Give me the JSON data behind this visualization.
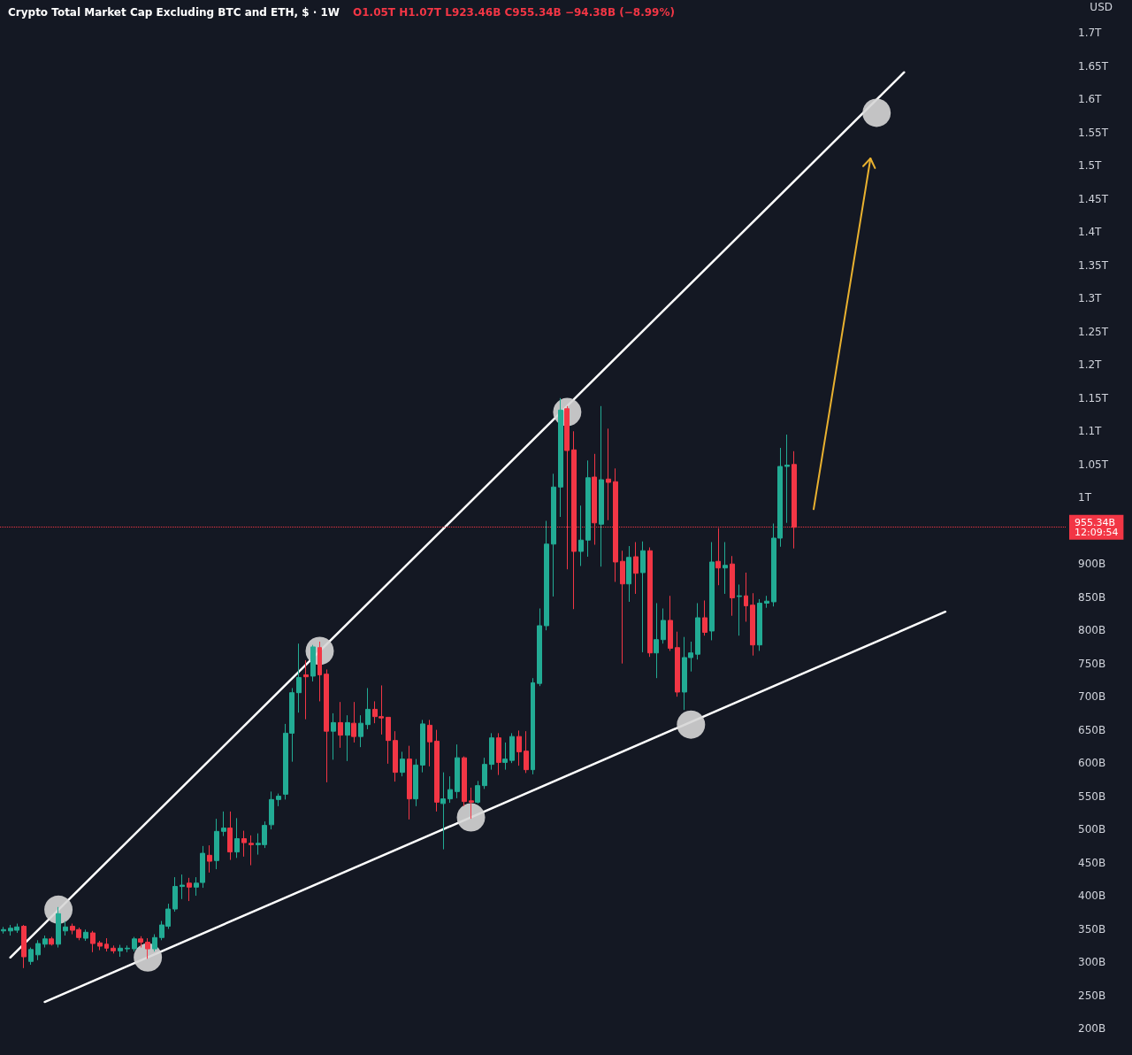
{
  "chart_data": {
    "type": "candlestick",
    "title": "Crypto Total Market Cap Excluding BTC and ETH, $ · 1W",
    "subtitle": "O1.05T H1.07T L923.46B C955.34B −94.38B (−8.99%)",
    "ylabel": "USD",
    "categories": [
      null,
      null,
      null,
      null,
      null,
      null,
      null,
      null,
      null,
      null,
      null,
      null,
      null,
      null,
      null,
      null,
      null,
      null,
      null,
      null,
      null,
      null,
      null,
      null,
      null,
      null,
      null,
      null,
      null,
      null,
      null,
      null,
      null,
      null,
      null,
      null,
      null,
      null,
      null,
      null,
      null,
      null,
      null,
      null,
      null,
      null,
      null,
      null,
      null,
      null,
      null,
      null,
      null,
      null,
      null,
      null,
      null,
      null,
      null,
      null,
      null,
      null,
      null,
      null,
      null,
      null,
      null,
      null,
      null,
      null,
      null,
      null,
      null,
      null,
      null,
      null,
      null,
      null,
      null,
      null,
      null,
      null,
      null,
      null,
      null,
      null,
      null,
      null,
      null,
      null,
      null,
      null,
      null,
      null,
      null,
      null,
      null,
      null,
      null,
      null,
      null,
      null,
      null,
      null,
      null,
      null,
      null,
      null,
      null,
      null,
      null,
      null,
      null,
      null,
      null,
      null,
      null,
      null,
      null,
      null,
      null,
      null,
      null,
      null,
      null,
      null,
      null,
      null,
      null,
      null,
      null,
      null,
      null,
      null,
      null,
      null,
      null,
      null,
      null,
      null,
      null,
      null,
      null,
      null,
      null,
      null,
      null,
      null,
      null,
      null,
      null,
      null,
      null,
      null,
      null
    ],
    "ohlc": [
      [
        347000000000.0,
        353000000000.0,
        343000000000.0,
        349000000000.0
      ],
      [
        347000000000.0,
        356000000000.0,
        340000000000.0,
        351000000000.0
      ],
      [
        348000000000.0,
        358000000000.0,
        344000000000.0,
        353000000000.0
      ],
      [
        354000000000.0,
        356000000000.0,
        291000000000.0,
        308000000000.0
      ],
      [
        301000000000.0,
        322000000000.0,
        296000000000.0,
        319000000000.0
      ],
      [
        311000000000.0,
        333000000000.0,
        303000000000.0,
        328000000000.0
      ],
      [
        327000000000.0,
        340000000000.0,
        322000000000.0,
        335000000000.0
      ],
      [
        335000000000.0,
        338000000000.0,
        325000000000.0,
        327000000000.0
      ],
      [
        327000000000.0,
        383000000000.0,
        322000000000.0,
        373000000000.0
      ],
      [
        347000000000.0,
        362000000000.0,
        340000000000.0,
        353000000000.0
      ],
      [
        354000000000.0,
        358000000000.0,
        342000000000.0,
        348000000000.0
      ],
      [
        349000000000.0,
        352000000000.0,
        333000000000.0,
        337000000000.0
      ],
      [
        336000000000.0,
        349000000000.0,
        332000000000.0,
        345000000000.0
      ],
      [
        344000000000.0,
        347000000000.0,
        315000000000.0,
        328000000000.0
      ],
      [
        329000000000.0,
        332000000000.0,
        318000000000.0,
        324000000000.0
      ],
      [
        327000000000.0,
        336000000000.0,
        316000000000.0,
        321000000000.0
      ],
      [
        321000000000.0,
        325000000000.0,
        313000000000.0,
        317000000000.0
      ],
      [
        317000000000.0,
        326000000000.0,
        308000000000.0,
        321000000000.0
      ],
      [
        320000000000.0,
        325000000000.0,
        315000000000.0,
        321000000000.0
      ],
      [
        320000000000.0,
        338000000000.0,
        316000000000.0,
        335000000000.0
      ],
      [
        335000000000.0,
        339000000000.0,
        322000000000.0,
        330000000000.0
      ],
      [
        330000000000.0,
        336000000000.0,
        305000000000.0,
        320000000000.0
      ],
      [
        320000000000.0,
        342000000000.0,
        316000000000.0,
        337000000000.0
      ],
      [
        337000000000.0,
        362000000000.0,
        333000000000.0,
        356000000000.0
      ],
      [
        354000000000.0,
        388000000000.0,
        350000000000.0,
        380000000000.0
      ],
      [
        380000000000.0,
        428000000000.0,
        376000000000.0,
        414000000000.0
      ],
      [
        414000000000.0,
        432000000000.0,
        395000000000.0,
        416000000000.0
      ],
      [
        419000000000.0,
        427000000000.0,
        392000000000.0,
        413000000000.0
      ],
      [
        413000000000.0,
        428000000000.0,
        400000000000.0,
        419000000000.0
      ],
      [
        420000000000.0,
        475000000000.0,
        412000000000.0,
        464000000000.0
      ],
      [
        461000000000.0,
        476000000000.0,
        435000000000.0,
        452000000000.0
      ],
      [
        453000000000.0,
        516000000000.0,
        440000000000.0,
        497000000000.0
      ],
      [
        497000000000.0,
        527000000000.0,
        490000000000.0,
        502000000000.0
      ],
      [
        502000000000.0,
        527000000000.0,
        454000000000.0,
        466000000000.0
      ],
      [
        466000000000.0,
        517000000000.0,
        457000000000.0,
        486000000000.0
      ],
      [
        486000000000.0,
        498000000000.0,
        459000000000.0,
        480000000000.0
      ],
      [
        479000000000.0,
        491000000000.0,
        446000000000.0,
        477000000000.0
      ],
      [
        477000000000.0,
        494000000000.0,
        462000000000.0,
        479000000000.0
      ],
      [
        477000000000.0,
        512000000000.0,
        472000000000.0,
        506000000000.0
      ],
      [
        507000000000.0,
        557000000000.0,
        500000000000.0,
        545000000000.0
      ],
      [
        545000000000.0,
        554000000000.0,
        535000000000.0,
        550000000000.0
      ],
      [
        553000000000.0,
        659000000000.0,
        545000000000.0,
        645000000000.0
      ],
      [
        645000000000.0,
        713000000000.0,
        602000000000.0,
        706000000000.0
      ],
      [
        706000000000.0,
        780000000000.0,
        676000000000.0,
        729000000000.0
      ],
      [
        733000000000.0,
        755000000000.0,
        666000000000.0,
        730000000000.0
      ],
      [
        731000000000.0,
        778000000000.0,
        723000000000.0,
        775000000000.0
      ],
      [
        774000000000.0,
        783000000000.0,
        693000000000.0,
        733000000000.0
      ],
      [
        734000000000.0,
        741000000000.0,
        571000000000.0,
        648000000000.0
      ],
      [
        648000000000.0,
        675000000000.0,
        605000000000.0,
        661000000000.0
      ],
      [
        661000000000.0,
        692000000000.0,
        623000000000.0,
        642000000000.0
      ],
      [
        642000000000.0,
        672000000000.0,
        603000000000.0,
        661000000000.0
      ],
      [
        660000000000.0,
        692000000000.0,
        631000000000.0,
        640000000000.0
      ],
      [
        640000000000.0,
        672000000000.0,
        624000000000.0,
        660000000000.0
      ],
      [
        658000000000.0,
        713000000000.0,
        651000000000.0,
        681000000000.0
      ],
      [
        681000000000.0,
        693000000000.0,
        660000000000.0,
        670000000000.0
      ],
      [
        670000000000.0,
        717000000000.0,
        643000000000.0,
        668000000000.0
      ],
      [
        669000000000.0,
        669000000000.0,
        599000000000.0,
        634000000000.0
      ],
      [
        634000000000.0,
        648000000000.0,
        572000000000.0,
        586000000000.0
      ],
      [
        586000000000.0,
        617000000000.0,
        580000000000.0,
        606000000000.0
      ],
      [
        606000000000.0,
        626000000000.0,
        515000000000.0,
        546000000000.0
      ],
      [
        546000000000.0,
        606000000000.0,
        535000000000.0,
        597000000000.0
      ],
      [
        597000000000.0,
        665000000000.0,
        586000000000.0,
        659000000000.0
      ],
      [
        657000000000.0,
        665000000000.0,
        595000000000.0,
        632000000000.0
      ],
      [
        633000000000.0,
        650000000000.0,
        527000000000.0,
        541000000000.0
      ],
      [
        539000000000.0,
        586000000000.0,
        470000000000.0,
        546000000000.0
      ],
      [
        546000000000.0,
        580000000000.0,
        540000000000.0,
        560000000000.0
      ],
      [
        557000000000.0,
        628000000000.0,
        547000000000.0,
        608000000000.0
      ],
      [
        608000000000.0,
        610000000000.0,
        535000000000.0,
        542000000000.0
      ],
      [
        543000000000.0,
        563000000000.0,
        516000000000.0,
        541000000000.0
      ],
      [
        541000000000.0,
        573000000000.0,
        539000000000.0,
        566000000000.0
      ],
      [
        566000000000.0,
        608000000000.0,
        561000000000.0,
        598000000000.0
      ],
      [
        598000000000.0,
        645000000000.0,
        590000000000.0,
        638000000000.0
      ],
      [
        638000000000.0,
        645000000000.0,
        582000000000.0,
        601000000000.0
      ],
      [
        601000000000.0,
        631000000000.0,
        590000000000.0,
        606000000000.0
      ],
      [
        604000000000.0,
        645000000000.0,
        600000000000.0,
        640000000000.0
      ],
      [
        640000000000.0,
        649000000000.0,
        596000000000.0,
        617000000000.0
      ],
      [
        618000000000.0,
        648000000000.0,
        585000000000.0,
        590000000000.0
      ],
      [
        590000000000.0,
        728000000000.0,
        583000000000.0,
        721000000000.0
      ],
      [
        720000000000.0,
        833000000000.0,
        716000000000.0,
        807000000000.0
      ],
      [
        807000000000.0,
        965000000000.0,
        800000000000.0,
        930000000000.0
      ],
      [
        930000000000.0,
        1036000000000.0,
        851000000000.0,
        1016000000000.0
      ],
      [
        1016000000000.0,
        1150000000000.0,
        971000000000.0,
        1132000000000.0
      ],
      [
        1134000000000.0,
        1138000000000.0,
        892000000000.0,
        1071000000000.0
      ],
      [
        1072000000000.0,
        1100000000000.0,
        832000000000.0,
        919000000000.0
      ],
      [
        919000000000.0,
        988000000000.0,
        897000000000.0,
        936000000000.0
      ],
      [
        936000000000.0,
        1056000000000.0,
        911000000000.0,
        1030000000000.0
      ],
      [
        1031000000000.0,
        1066000000000.0,
        929000000000.0,
        962000000000.0
      ],
      [
        960000000000.0,
        1138000000000.0,
        896000000000.0,
        1027000000000.0
      ],
      [
        1028000000000.0,
        1104000000000.0,
        966000000000.0,
        1023000000000.0
      ],
      [
        1024000000000.0,
        1044000000000.0,
        873000000000.0,
        903000000000.0
      ],
      [
        904000000000.0,
        920000000000.0,
        750000000000.0,
        870000000000.0
      ],
      [
        870000000000.0,
        927000000000.0,
        843000000000.0,
        910000000000.0
      ],
      [
        911000000000.0,
        933000000000.0,
        855000000000.0,
        886000000000.0
      ],
      [
        887000000000.0,
        934000000000.0,
        767000000000.0,
        920000000000.0
      ],
      [
        920000000000.0,
        925000000000.0,
        760000000000.0,
        766000000000.0
      ],
      [
        766000000000.0,
        841000000000.0,
        728000000000.0,
        786000000000.0
      ],
      [
        786000000000.0,
        833000000000.0,
        780000000000.0,
        815000000000.0
      ],
      [
        815000000000.0,
        852000000000.0,
        769000000000.0,
        773000000000.0
      ],
      [
        774000000000.0,
        798000000000.0,
        700000000000.0,
        707000000000.0
      ],
      [
        707000000000.0,
        790000000000.0,
        680000000000.0,
        759000000000.0
      ],
      [
        759000000000.0,
        783000000000.0,
        738000000000.0,
        766000000000.0
      ],
      [
        764000000000.0,
        841000000000.0,
        756000000000.0,
        819000000000.0
      ],
      [
        819000000000.0,
        845000000000.0,
        792000000000.0,
        797000000000.0
      ],
      [
        799000000000.0,
        933000000000.0,
        785000000000.0,
        903000000000.0
      ],
      [
        904000000000.0,
        954000000000.0,
        868000000000.0,
        894000000000.0
      ],
      [
        894000000000.0,
        933000000000.0,
        855000000000.0,
        898000000000.0
      ],
      [
        900000000000.0,
        912000000000.0,
        822000000000.0,
        849000000000.0
      ],
      [
        851000000000.0,
        869000000000.0,
        792000000000.0,
        852000000000.0
      ],
      [
        852000000000.0,
        887000000000.0,
        813000000000.0,
        837000000000.0
      ],
      [
        838000000000.0,
        856000000000.0,
        762000000000.0,
        778000000000.0
      ],
      [
        778000000000.0,
        847000000000.0,
        769000000000.0,
        841000000000.0
      ],
      [
        841000000000.0,
        852000000000.0,
        834000000000.0,
        844000000000.0
      ],
      [
        843000000000.0,
        961000000000.0,
        836000000000.0,
        939000000000.0
      ],
      [
        939000000000.0,
        1075000000000.0,
        926000000000.0,
        1047000000000.0
      ],
      [
        1047000000000.0,
        1095000000000.0,
        962000000000.0,
        1049000000000.0
      ],
      [
        1050000000000.0,
        1070000000000.0,
        923460000000.0,
        955340000000.0
      ],
      null,
      null,
      null,
      null,
      null,
      null,
      null,
      null,
      null,
      null,
      null,
      null,
      null,
      null,
      null,
      null,
      null,
      null,
      null,
      null,
      null,
      null,
      null,
      null,
      null,
      null,
      null,
      null,
      null,
      null,
      null,
      null,
      null,
      null,
      null,
      null,
      null,
      null,
      null
    ],
    "colors": [
      "#22ab94",
      "#22ab94",
      "#22ab94",
      "#f23645",
      "#22ab94",
      "#22ab94",
      "#22ab94",
      "#f23645",
      "#22ab94",
      "#22ab94",
      "#f23645",
      "#f23645",
      "#22ab94",
      "#f23645",
      "#f23645",
      "#f23645",
      "#f23645",
      "#22ab94",
      "#22ab94",
      "#22ab94",
      "#f23645",
      "#f23645",
      "#22ab94",
      "#22ab94",
      "#22ab94",
      "#22ab94",
      "#22ab94",
      "#f23645",
      "#22ab94",
      "#22ab94",
      "#f23645",
      "#22ab94",
      "#22ab94",
      "#f23645",
      "#22ab94",
      "#f23645",
      "#f23645",
      "#22ab94",
      "#22ab94",
      "#22ab94",
      "#22ab94",
      "#22ab94",
      "#22ab94",
      "#22ab94",
      "#f23645",
      "#22ab94",
      "#f23645",
      "#f23645",
      "#22ab94",
      "#f23645",
      "#22ab94",
      "#f23645",
      "#22ab94",
      "#22ab94",
      "#f23645",
      "#f23645",
      "#f23645",
      "#f23645",
      "#22ab94",
      "#f23645",
      "#22ab94",
      "#22ab94",
      "#f23645",
      "#f23645",
      "#22ab94",
      "#22ab94",
      "#22ab94",
      "#f23645",
      "#f23645",
      "#22ab94",
      "#22ab94",
      "#22ab94",
      "#f23645",
      "#22ab94",
      "#22ab94",
      "#f23645",
      "#f23645",
      "#22ab94",
      "#22ab94",
      "#22ab94",
      "#22ab94",
      "#22ab94",
      "#f23645",
      "#f23645",
      "#22ab94",
      "#22ab94",
      "#f23645",
      "#22ab94",
      "#f23645",
      "#f23645",
      "#f23645",
      "#22ab94",
      "#f23645",
      "#22ab94",
      "#f23645",
      "#22ab94",
      "#22ab94",
      "#f23645",
      "#f23645",
      "#22ab94",
      "#22ab94",
      "#22ab94",
      "#f23645",
      "#22ab94",
      "#f23645",
      "#22ab94",
      "#f23645",
      "#22ab94",
      "#f23645",
      "#f23645",
      "#22ab94",
      "#22ab94",
      "#22ab94",
      "#22ab94",
      "#22ab94",
      "#f23645",
      null,
      null,
      null,
      null,
      null,
      null,
      null,
      null,
      null,
      null,
      null,
      null,
      null,
      null,
      null,
      null,
      null,
      null,
      null,
      null,
      null,
      null,
      null,
      null,
      null,
      null,
      null,
      null,
      null,
      null,
      null,
      null,
      null,
      null,
      null,
      null,
      null,
      null,
      null
    ],
    "series": [
      {
        "type": "line",
        "color": "#ffffff",
        "values": [
          null,
          307000000000.0,
          null,
          null,
          null,
          null,
          null,
          null,
          null,
          null,
          null,
          null,
          null,
          null,
          null,
          null,
          null,
          null,
          null,
          null,
          null,
          null,
          null,
          null,
          null,
          null,
          null,
          null,
          null,
          null,
          null,
          null,
          null,
          null,
          null,
          null,
          null,
          null,
          null,
          null,
          null,
          null,
          null,
          null,
          null,
          null,
          null,
          null,
          null,
          null,
          null,
          null,
          null,
          null,
          null,
          null,
          null,
          null,
          null,
          null,
          null,
          null,
          null,
          null,
          null,
          null,
          null,
          null,
          null,
          null,
          null,
          null,
          null,
          null,
          null,
          null,
          null,
          null,
          null,
          null,
          null,
          null,
          null,
          null,
          null,
          null,
          null,
          null,
          null,
          null,
          null,
          null,
          null,
          null,
          null,
          null,
          null,
          null,
          null,
          null,
          null,
          null,
          null,
          null,
          null,
          null,
          null,
          null,
          null,
          null,
          null,
          null,
          null,
          null,
          null,
          null,
          null,
          null,
          null,
          null,
          null,
          null,
          null,
          null,
          null,
          null,
          null,
          null,
          null,
          null,
          null,
          1641000000000.0,
          null,
          null,
          null,
          null,
          null,
          null,
          null,
          null,
          null,
          null,
          null,
          null,
          null,
          null,
          null,
          null,
          null,
          null,
          null,
          null,
          null,
          null,
          null
        ]
      },
      {
        "type": "line",
        "color": "#ffffff",
        "values": [
          null,
          null,
          null,
          null,
          null,
          null,
          240000000000.0,
          null,
          null,
          null,
          null,
          null,
          null,
          null,
          null,
          null,
          null,
          null,
          null,
          null,
          null,
          null,
          null,
          null,
          null,
          null,
          null,
          null,
          null,
          null,
          null,
          null,
          null,
          null,
          null,
          null,
          null,
          null,
          null,
          null,
          null,
          null,
          null,
          null,
          null,
          null,
          null,
          null,
          null,
          null,
          null,
          null,
          null,
          null,
          null,
          null,
          null,
          null,
          null,
          null,
          null,
          null,
          null,
          null,
          null,
          null,
          null,
          null,
          null,
          null,
          null,
          null,
          null,
          null,
          null,
          null,
          null,
          null,
          null,
          null,
          null,
          null,
          null,
          null,
          null,
          null,
          null,
          null,
          null,
          null,
          null,
          null,
          null,
          null,
          null,
          null,
          null,
          null,
          null,
          null,
          null,
          null,
          null,
          null,
          null,
          null,
          null,
          null,
          null,
          null,
          null,
          null,
          null,
          null,
          null,
          null,
          null,
          null,
          null,
          null,
          null,
          null,
          null,
          null,
          null,
          null,
          null,
          null,
          null,
          null,
          null,
          null,
          null,
          null,
          null,
          null,
          null,
          828000000000.0,
          null,
          null,
          null,
          null,
          null,
          null,
          null,
          null,
          null,
          null,
          null,
          null,
          null,
          null,
          null,
          null,
          null
        ]
      },
      {
        "type": "scatter",
        "color": "#d6d6d6",
        "marker": "circle",
        "values": [
          null,
          null,
          null,
          null,
          null,
          null,
          null,
          null,
          379000000000.0,
          null,
          null,
          null,
          null,
          null,
          null,
          null,
          null,
          null,
          null,
          null,
          null,
          307000000000.0,
          null,
          null,
          null,
          null,
          null,
          null,
          null,
          null,
          null,
          null,
          null,
          null,
          null,
          null,
          null,
          null,
          null,
          null,
          null,
          null,
          null,
          null,
          null,
          null,
          769000000000.0,
          null,
          null,
          null,
          null,
          null,
          null,
          null,
          null,
          null,
          null,
          null,
          null,
          null,
          null,
          null,
          null,
          null,
          null,
          null,
          null,
          null,
          518000000000.0,
          null,
          null,
          null,
          null,
          null,
          null,
          null,
          null,
          null,
          null,
          null,
          null,
          null,
          1129000000000.0,
          null,
          null,
          null,
          null,
          null,
          null,
          null,
          null,
          null,
          null,
          null,
          null,
          null,
          null,
          null,
          null,
          null,
          658000000000.0,
          null,
          null,
          null,
          null,
          null,
          null,
          null,
          null,
          null,
          null,
          null,
          null,
          null,
          null,
          null,
          null,
          null,
          null,
          null,
          null,
          null,
          null,
          null,
          null,
          null,
          null,
          1580000000000.0,
          null,
          null,
          null,
          null,
          null,
          null,
          null,
          null,
          null,
          null,
          null,
          null,
          null,
          null,
          null,
          null,
          null,
          null,
          null,
          null,
          null,
          null,
          null,
          null,
          null,
          null,
          null
        ]
      }
    ],
    "ylim": [
      160000000000.0,
      1750000000000.0
    ],
    "yticks": [
      {
        "value": 200000000000.0,
        "label": "200B"
      },
      {
        "value": 250000000000.0,
        "label": "250B"
      },
      {
        "value": 300000000000.0,
        "label": "300B"
      },
      {
        "value": 350000000000.0,
        "label": "350B"
      },
      {
        "value": 400000000000.0,
        "label": "400B"
      },
      {
        "value": 450000000000.0,
        "label": "450B"
      },
      {
        "value": 500000000000.0,
        "label": "500B"
      },
      {
        "value": 550000000000.0,
        "label": "550B"
      },
      {
        "value": 600000000000.0,
        "label": "600B"
      },
      {
        "value": 650000000000.0,
        "label": "650B"
      },
      {
        "value": 700000000000.0,
        "label": "700B"
      },
      {
        "value": 750000000000.0,
        "label": "750B"
      },
      {
        "value": 800000000000.0,
        "label": "800B"
      },
      {
        "value": 850000000000.0,
        "label": "850B"
      },
      {
        "value": 900000000000.0,
        "label": "900B"
      },
      {
        "value": 1000000000000.0,
        "label": "1T"
      },
      {
        "value": 1050000000000.0,
        "label": "1.05T"
      },
      {
        "value": 1100000000000.0,
        "label": "1.1T"
      },
      {
        "value": 1150000000000.0,
        "label": "1.15T"
      },
      {
        "value": 1200000000000.0,
        "label": "1.2T"
      },
      {
        "value": 1250000000000.0,
        "label": "1.25T"
      },
      {
        "value": 1300000000000.0,
        "label": "1.3T"
      },
      {
        "value": 1350000000000.0,
        "label": "1.35T"
      },
      {
        "value": 1400000000000.0,
        "label": "1.4T"
      },
      {
        "value": 1450000000000.0,
        "label": "1.45T"
      },
      {
        "value": 1500000000000.0,
        "label": "1.5T"
      },
      {
        "value": 1550000000000.0,
        "label": "1.55T"
      },
      {
        "value": 1600000000000.0,
        "label": "1.6T"
      },
      {
        "value": 1650000000000.0,
        "label": "1.65T"
      },
      {
        "value": 1700000000000.0,
        "label": "1.7T"
      }
    ],
    "ref_lines": [
      {
        "axis": "y",
        "value": 955340000000.0,
        "label": "955.34B\n12:09:54",
        "color": "#f23645",
        "line_style": "dotted"
      }
    ],
    "tick_labels": "y"
  }
}
